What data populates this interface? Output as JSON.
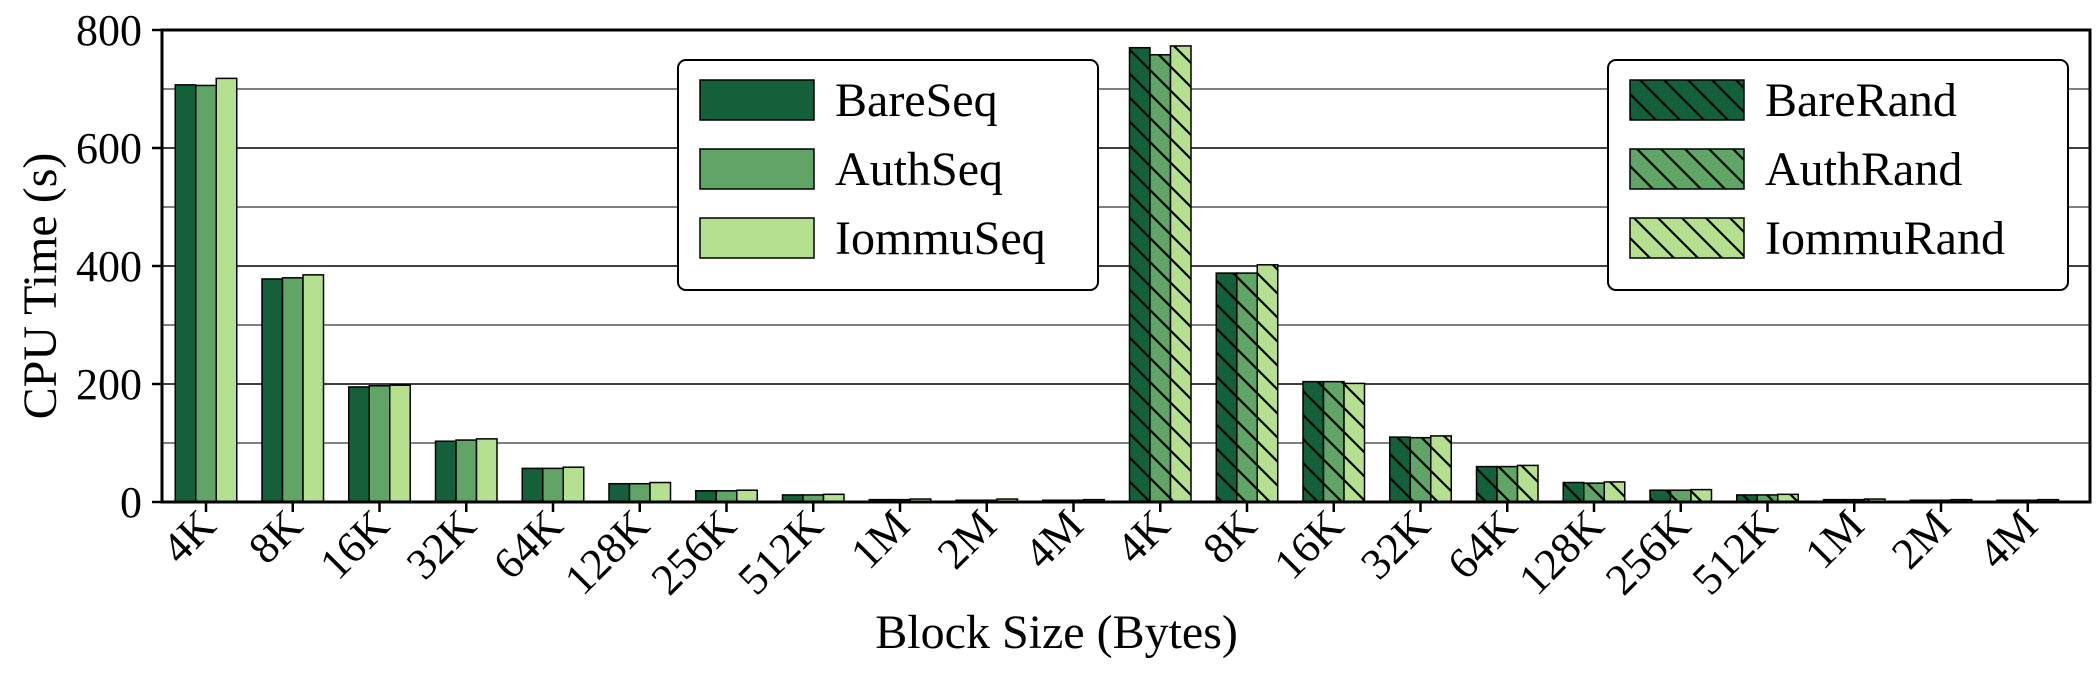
{
  "chart_data": {
    "type": "bar",
    "xlabel": "Block Size (Bytes)",
    "ylabel": "CPU Time (s)",
    "ylim": [
      0,
      800
    ],
    "yticks": [
      0,
      200,
      400,
      600,
      800
    ],
    "grid": true,
    "categories": [
      "4K",
      "8K",
      "16K",
      "32K",
      "64K",
      "128K",
      "256K",
      "512K",
      "1M",
      "2M",
      "4M",
      "4K",
      "8K",
      "16K",
      "32K",
      "64K",
      "128K",
      "256K",
      "512K",
      "1M",
      "2M",
      "4M"
    ],
    "colors": {
      "bare": "#13603a",
      "auth": "#60a466",
      "iommu": "#b5e08f"
    },
    "legends": [
      {
        "placement": "top-center",
        "entries": [
          "BareSeq",
          "AuthSeq",
          "IommuSeq"
        ]
      },
      {
        "placement": "top-right",
        "entries": [
          "BareRand",
          "AuthRand",
          "IommuRand"
        ]
      }
    ],
    "series": [
      {
        "name": "BareSeq",
        "color": "#13603a",
        "hatch": false,
        "values": [
          707,
          378,
          195,
          103,
          57,
          31,
          19,
          12,
          4,
          3,
          3,
          null,
          null,
          null,
          null,
          null,
          null,
          null,
          null,
          null,
          null,
          null
        ]
      },
      {
        "name": "AuthSeq",
        "color": "#60a466",
        "hatch": false,
        "values": [
          706,
          380,
          197,
          105,
          57,
          31,
          19,
          12,
          4,
          3,
          3,
          null,
          null,
          null,
          null,
          null,
          null,
          null,
          null,
          null,
          null,
          null
        ]
      },
      {
        "name": "IommuSeq",
        "color": "#b5e08f",
        "hatch": false,
        "values": [
          718,
          385,
          198,
          107,
          59,
          33,
          20,
          13,
          5,
          5,
          4,
          null,
          null,
          null,
          null,
          null,
          null,
          null,
          null,
          null,
          null,
          null
        ]
      },
      {
        "name": "BareRand",
        "color": "#13603a",
        "hatch": true,
        "values": [
          null,
          null,
          null,
          null,
          null,
          null,
          null,
          null,
          null,
          null,
          null,
          770,
          388,
          204,
          110,
          60,
          33,
          20,
          12,
          4,
          3,
          3
        ]
      },
      {
        "name": "AuthRand",
        "color": "#60a466",
        "hatch": true,
        "values": [
          null,
          null,
          null,
          null,
          null,
          null,
          null,
          null,
          null,
          null,
          null,
          758,
          388,
          204,
          109,
          60,
          32,
          20,
          12,
          4,
          3,
          3
        ]
      },
      {
        "name": "IommuRand",
        "color": "#b5e08f",
        "hatch": true,
        "values": [
          null,
          null,
          null,
          null,
          null,
          null,
          null,
          null,
          null,
          null,
          null,
          773,
          402,
          201,
          112,
          62,
          34,
          21,
          13,
          5,
          4,
          4
        ]
      }
    ]
  }
}
